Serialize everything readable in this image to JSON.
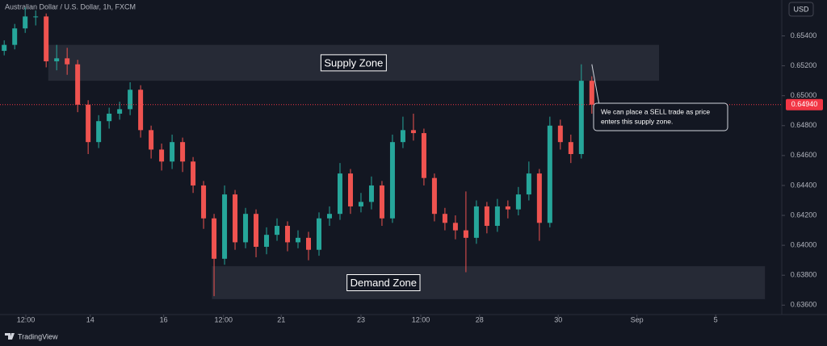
{
  "chart_data": {
    "type": "candlestick",
    "title": "Australian Dollar / U.S. Dollar, 1h, FXCM",
    "currency": "USD",
    "brand": "TradingView",
    "up_color": "#26a69a",
    "down_color": "#ef5350",
    "open": [
      0.653,
      0.6534,
      0.6545,
      0.6553,
      0.6553,
      0.6523,
      0.6525,
      0.6521,
      0.6494,
      0.6469,
      0.6483,
      0.6488,
      0.6491,
      0.6504,
      0.6477,
      0.6464,
      0.6456,
      0.6469,
      0.6456,
      0.644,
      0.6418,
      0.6391,
      0.6434,
      0.6402,
      0.6421,
      0.6399,
      0.6407,
      0.6413,
      0.6402,
      0.6405,
      0.6397,
      0.6418,
      0.6421,
      0.6448,
      0.6426,
      0.6429,
      0.644,
      0.6418,
      0.6469,
      0.6477,
      0.6475,
      0.6445,
      0.6421,
      0.6415,
      0.641,
      0.6405,
      0.6426,
      0.6413,
      0.6426,
      0.6424,
      0.6434,
      0.6448,
      0.6415,
      0.648,
      0.6469,
      0.6461,
      0.651
    ],
    "high": [
      0.6537,
      0.6548,
      0.6559,
      0.6557,
      0.6555,
      0.6534,
      0.6532,
      0.6524,
      0.6497,
      0.6487,
      0.6492,
      0.6496,
      0.6509,
      0.6507,
      0.648,
      0.6468,
      0.6474,
      0.6472,
      0.6459,
      0.6443,
      0.6421,
      0.644,
      0.6437,
      0.6425,
      0.6424,
      0.6412,
      0.6418,
      0.6416,
      0.641,
      0.6409,
      0.6422,
      0.6426,
      0.6455,
      0.6451,
      0.6435,
      0.6446,
      0.6443,
      0.6474,
      0.6486,
      0.6488,
      0.6478,
      0.6448,
      0.6425,
      0.642,
      0.6436,
      0.643,
      0.6429,
      0.6431,
      0.643,
      0.6439,
      0.6456,
      0.6451,
      0.6486,
      0.6484,
      0.6474,
      0.6521,
      0.6513
    ],
    "low": [
      0.6527,
      0.6531,
      0.6542,
      0.6547,
      0.6519,
      0.6517,
      0.6514,
      0.6489,
      0.6461,
      0.6465,
      0.6478,
      0.6484,
      0.6487,
      0.6472,
      0.6458,
      0.645,
      0.6451,
      0.6449,
      0.6435,
      0.6411,
      0.6366,
      0.6387,
      0.6397,
      0.6398,
      0.6392,
      0.6394,
      0.6403,
      0.6396,
      0.6398,
      0.639,
      0.6393,
      0.6413,
      0.6417,
      0.6421,
      0.6422,
      0.6424,
      0.6413,
      0.6415,
      0.6465,
      0.647,
      0.644,
      0.6416,
      0.641,
      0.6404,
      0.6382,
      0.6401,
      0.6408,
      0.6409,
      0.6418,
      0.642,
      0.643,
      0.6403,
      0.6412,
      0.6464,
      0.6455,
      0.6458,
      0.6488
    ],
    "close": [
      0.6534,
      0.6545,
      0.6553,
      0.6553,
      0.6523,
      0.6525,
      0.6521,
      0.6494,
      0.6469,
      0.6483,
      0.6488,
      0.6491,
      0.6504,
      0.6477,
      0.6464,
      0.6456,
      0.6469,
      0.6456,
      0.644,
      0.6418,
      0.6391,
      0.6434,
      0.6402,
      0.6421,
      0.6399,
      0.6407,
      0.6413,
      0.6402,
      0.6405,
      0.6397,
      0.6418,
      0.6421,
      0.6448,
      0.6426,
      0.6429,
      0.644,
      0.6418,
      0.6469,
      0.6477,
      0.6475,
      0.6445,
      0.6421,
      0.6415,
      0.641,
      0.6405,
      0.6426,
      0.6413,
      0.6426,
      0.6424,
      0.6434,
      0.6448,
      0.6415,
      0.648,
      0.6469,
      0.6461,
      0.651,
      0.6494
    ],
    "xlim": [
      0,
      74.5
    ],
    "xticks": [
      {
        "value": 2.46,
        "label": "12:00"
      },
      {
        "value": 8.6,
        "label": "14"
      },
      {
        "value": 15.6,
        "label": "16"
      },
      {
        "value": 21.3,
        "label": "12:00"
      },
      {
        "value": 26.8,
        "label": "21"
      },
      {
        "value": 34.4,
        "label": "23"
      },
      {
        "value": 40.1,
        "label": "12:00"
      },
      {
        "value": 45.7,
        "label": "28"
      },
      {
        "value": 53.2,
        "label": "30"
      },
      {
        "value": 60.7,
        "label": "Sep"
      },
      {
        "value": 68.2,
        "label": "5"
      }
    ],
    "ylim": [
      0.6351,
      0.6564
    ],
    "yticks": [
      {
        "value": 0.654,
        "label": "0.65400"
      },
      {
        "value": 0.652,
        "label": "0.65200"
      },
      {
        "value": 0.65,
        "label": "0.65000"
      },
      {
        "value": 0.648,
        "label": "0.64800"
      },
      {
        "value": 0.646,
        "label": "0.64600"
      },
      {
        "value": 0.644,
        "label": "0.64400"
      },
      {
        "value": 0.642,
        "label": "0.64200"
      },
      {
        "value": 0.64,
        "label": "0.64000"
      },
      {
        "value": 0.638,
        "label": "0.63800"
      },
      {
        "value": 0.636,
        "label": "0.63600"
      }
    ],
    "last_price": {
      "value": 0.6494,
      "label": "0.64940",
      "color": "#f23645"
    },
    "zones": [
      {
        "label": "Supply Zone",
        "low": 0.651,
        "high": 0.6534,
        "x_start": 4.6,
        "x_end": 62.8
      },
      {
        "label": "Demand Zone",
        "low": 0.6364,
        "high": 0.6386,
        "x_start": 20.2,
        "x_end": 72.9
      }
    ],
    "annotation": {
      "lines": [
        "We can place a SELL trade as price",
        "enters this supply zone."
      ]
    },
    "grid": false
  }
}
